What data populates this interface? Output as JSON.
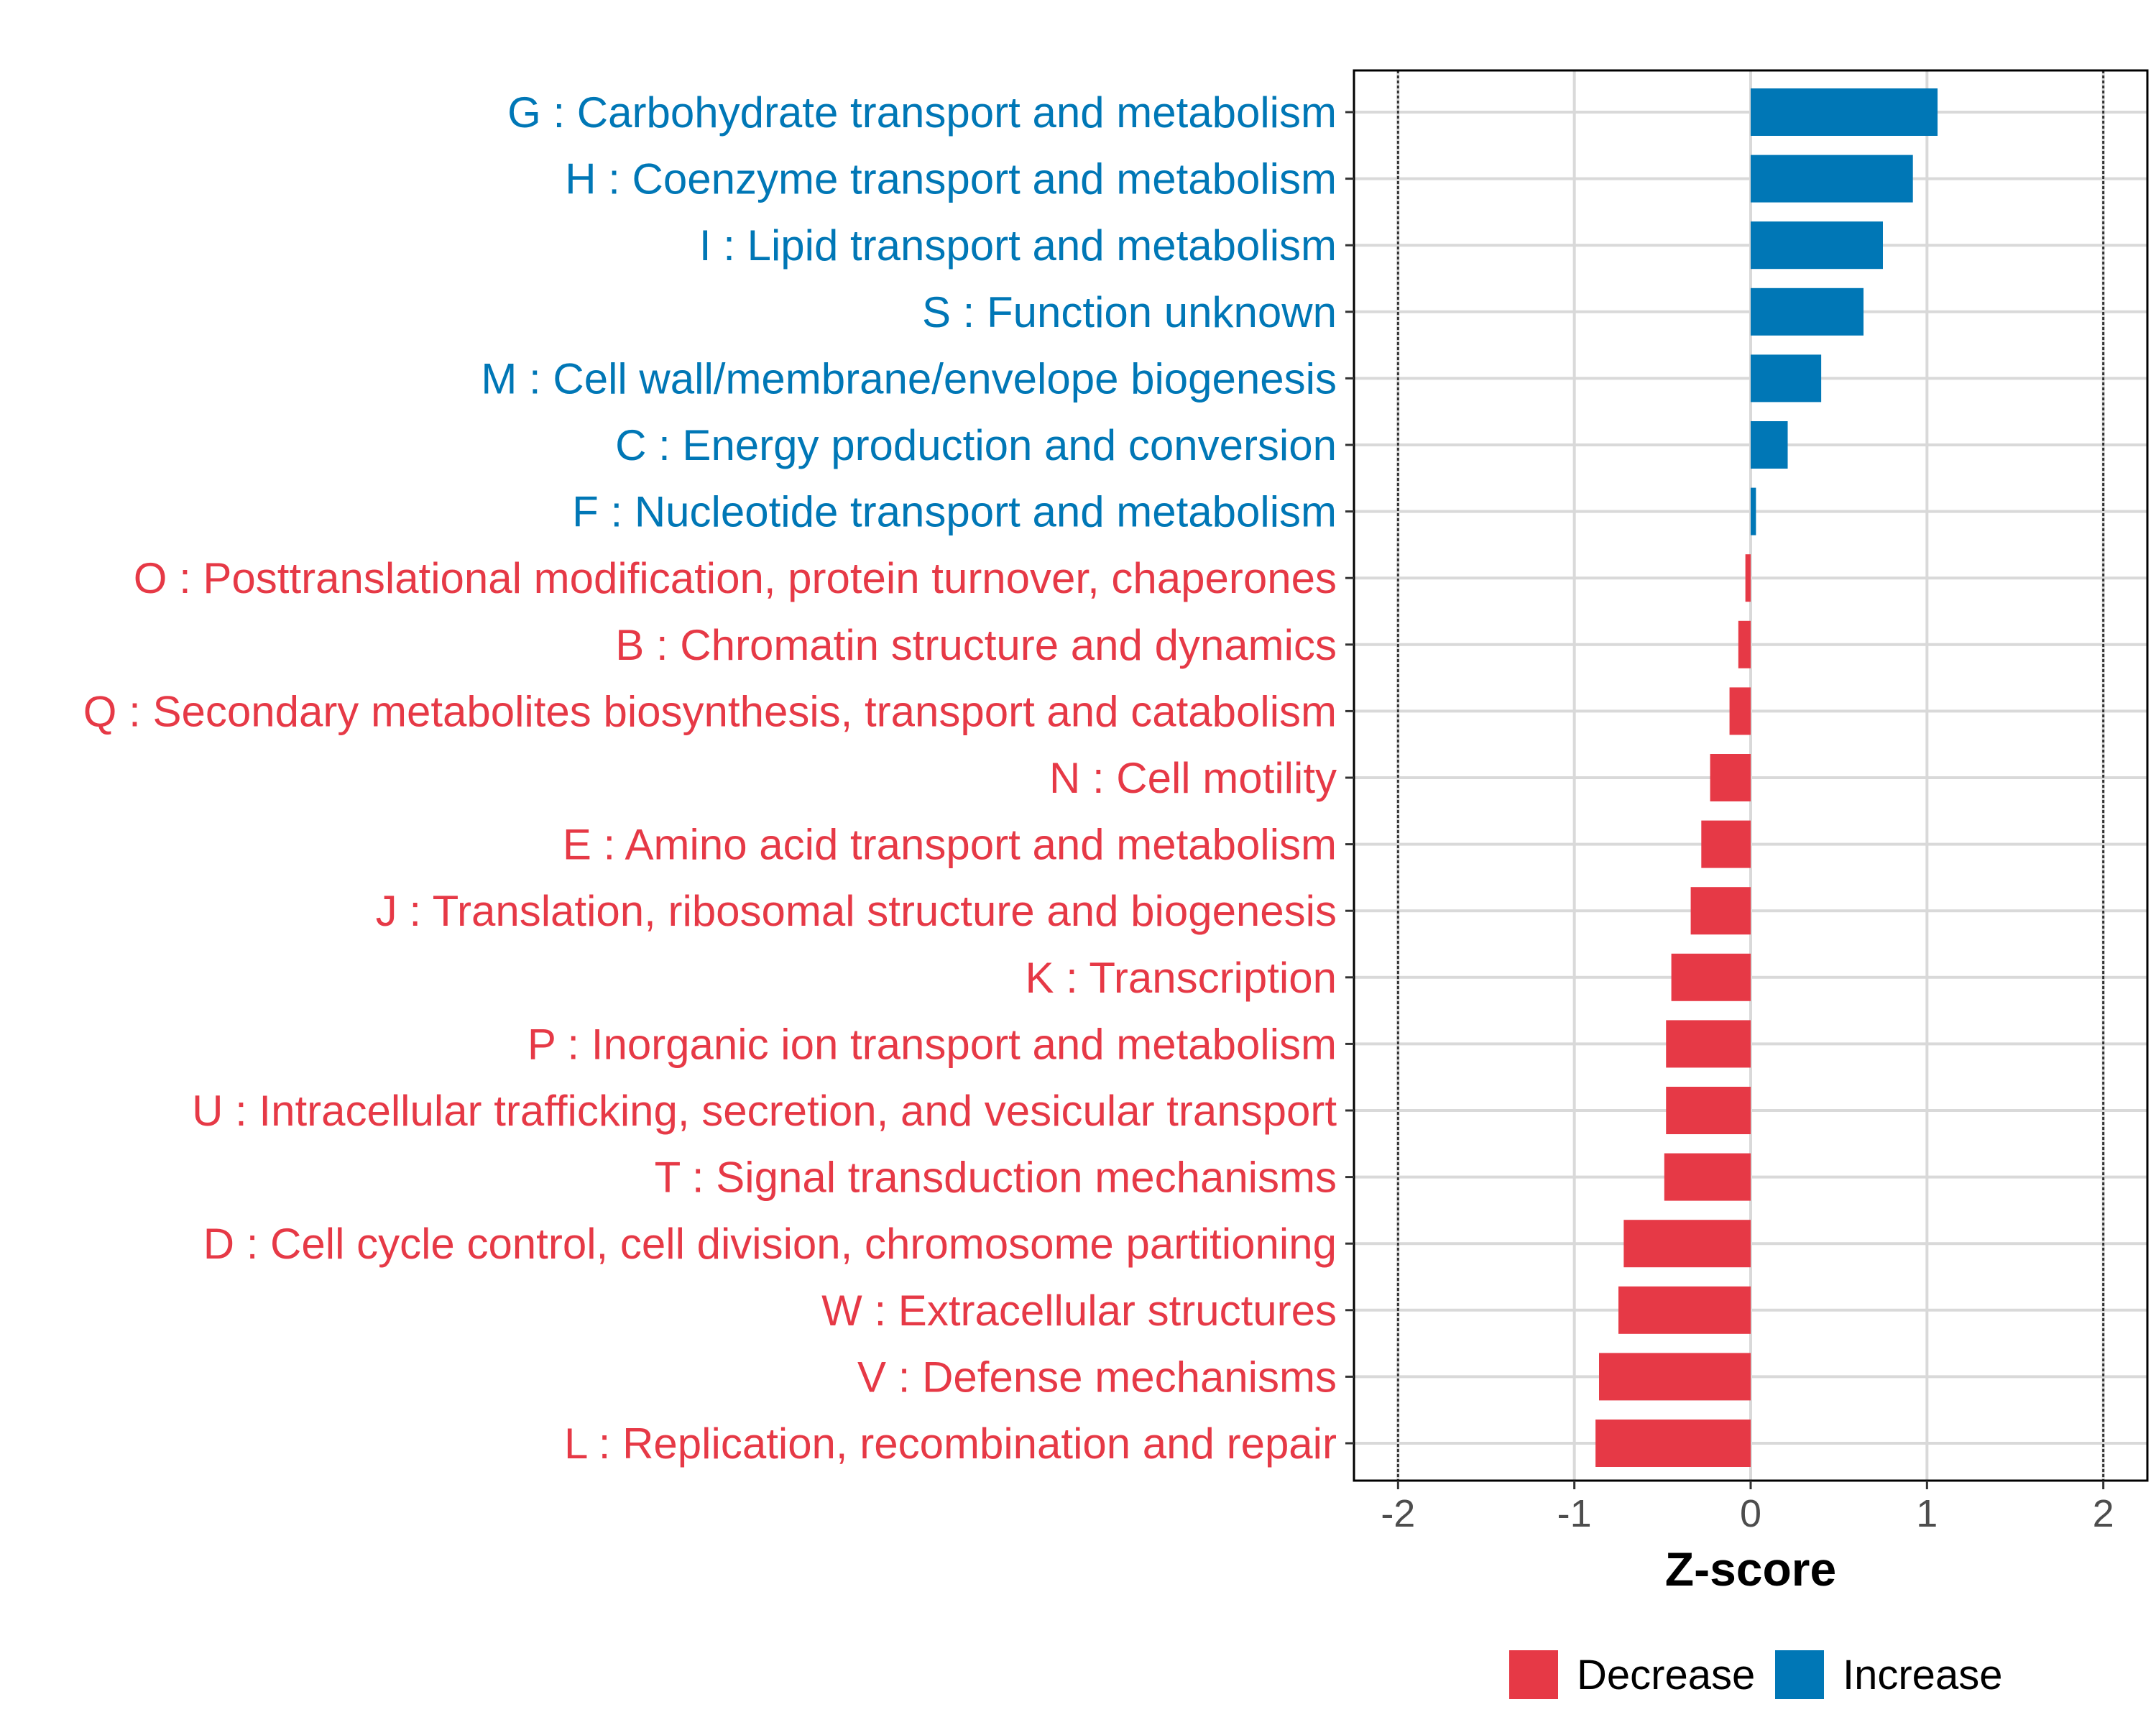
{
  "chart_data": {
    "type": "bar",
    "orientation": "horizontal",
    "xlabel": "Z-score",
    "xlim": [
      -2.25,
      2.25
    ],
    "xticks": [
      "-2",
      "-1",
      "0",
      "1",
      "2"
    ],
    "xtick_values": [
      -2,
      -1,
      0,
      1,
      2
    ],
    "reference_lines": [
      -2,
      2
    ],
    "categories": [
      "G : Carbohydrate transport and metabolism",
      "H : Coenzyme transport and metabolism",
      "I : Lipid transport and metabolism",
      "S : Function unknown",
      "M : Cell wall/membrane/envelope biogenesis",
      "C : Energy production and conversion",
      "F : Nucleotide transport and metabolism",
      "O : Posttranslational modification, protein turnover, chaperones",
      "B : Chromatin structure and dynamics",
      "Q : Secondary metabolites biosynthesis, transport and catabolism",
      "N : Cell motility",
      "E : Amino acid transport and metabolism",
      "J : Translation, ribosomal structure and biogenesis",
      "K : Transcription",
      "P : Inorganic ion transport and metabolism",
      "U : Intracellular trafficking, secretion, and vesicular transport",
      "T : Signal transduction mechanisms",
      "D : Cell cycle control, cell division, chromosome partitioning",
      "W : Extracellular structures",
      "V : Defense mechanisms",
      "L : Replication, recombination and repair"
    ],
    "values": [
      1.06,
      0.92,
      0.75,
      0.64,
      0.4,
      0.21,
      0.03,
      -0.03,
      -0.07,
      -0.12,
      -0.23,
      -0.28,
      -0.34,
      -0.45,
      -0.48,
      -0.48,
      -0.49,
      -0.72,
      -0.75,
      -0.86,
      -0.88
    ],
    "groups": [
      "Increase",
      "Increase",
      "Increase",
      "Increase",
      "Increase",
      "Increase",
      "Increase",
      "Decrease",
      "Decrease",
      "Decrease",
      "Decrease",
      "Decrease",
      "Decrease",
      "Decrease",
      "Decrease",
      "Decrease",
      "Decrease",
      "Decrease",
      "Decrease",
      "Decrease",
      "Decrease"
    ],
    "legend": [
      {
        "name": "Decrease",
        "color": "#e63946"
      },
      {
        "name": "Increase",
        "color": "#0077b6"
      }
    ],
    "legend_position": "bottom",
    "grid": true
  },
  "colors": {
    "increase": "#0077b6",
    "decrease": "#e63946",
    "grid": "#d9d9d9"
  }
}
